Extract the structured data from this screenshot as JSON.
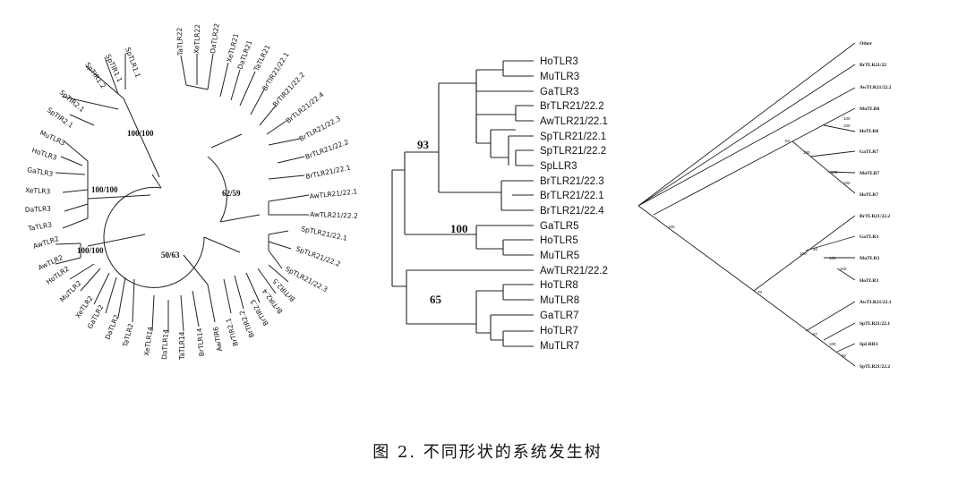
{
  "caption": "图 2. 不同形状的系统发生树",
  "circular_tree": {
    "taxa": [
      "SpTLR1.1",
      "SpTIR1.1",
      "SpTIR1.2",
      "SpTIR2.1",
      "SpTIR2.1",
      "MuTLR3",
      "HoTLR3",
      "GaTLR3",
      "XeTLR3",
      "DaTLR3",
      "TaTLR3",
      "AwTLR2",
      "AwTLR2",
      "HoTLR2",
      "MuTLR2",
      "XeTLR2",
      "GaTLR2",
      "DaTLR2",
      "TaTLR2",
      "XeTLR14",
      "DaTLR14",
      "TaTLR14",
      "BrTLR14",
      "AwTIR6",
      "BrTIR2.1",
      "BrTIR2.2",
      "BrTIR2.3",
      "BrTIR2.4",
      "BrTIR2.5",
      "SpTLR21/22.3",
      "SpTLR21/22.2",
      "SpTLR21/22.1",
      "AwTLR21/22.2",
      "AwTLR21/22.1",
      "BrTLR21/22.1",
      "BrTLR21/22.2",
      "BrTLR21/22.3",
      "BrTLR21/22.4",
      "BrTIR21/22.2",
      "BrTIR21/22.1",
      "TaTLR21",
      "DaTLR21",
      "XeTLR21",
      "DaTLR22",
      "XeTLR22",
      "TaTLR22"
    ],
    "support_labels": [
      "100/100",
      "100/100",
      "100/100",
      "62/59",
      "50/63"
    ]
  },
  "rect_tree": {
    "taxa": [
      "HoTLR3",
      "MuTLR3",
      "GaTLR3",
      "BrTLR21/22.2",
      "AwTLR21/22.1",
      "SpTLR21/22.1",
      "SpTLR21/22.2",
      "SpLLR3",
      "BrTLR21/22.3",
      "BrTLR21/22.1",
      "BrTLR21/22.4",
      "GaTLR5",
      "HoTLR5",
      "MuTLR5",
      "AwTLR21/22.2",
      "HoTLR8",
      "MuTLR8",
      "GaTLR7",
      "HoTLR7",
      "MuTLR7"
    ],
    "bootstrap": [
      "93",
      "100",
      "65"
    ]
  },
  "slanted_tree": {
    "taxa": [
      "Other",
      "BrTLR21/22",
      "AwTLR21/22.2",
      "MuTLR8",
      "HoTLR8",
      "GaTLR7",
      "MuTLR7",
      "HoTLR7",
      "BrTLR21/22.2",
      "GaTLR3",
      "MuTLR3",
      "HoTLR3",
      "AwTLR21/22.1",
      "SpTLR21/22.1",
      "SpLRR3",
      "SpTLR21/22.2"
    ],
    "node_values": [
      "100",
      "53",
      "100",
      "100",
      "100",
      "100",
      "100",
      "100",
      "56",
      "100",
      "100",
      "70",
      "57",
      "100",
      "92"
    ]
  }
}
